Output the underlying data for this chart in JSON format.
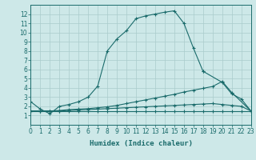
{
  "xlabel": "Humidex (Indice chaleur)",
  "background_color": "#cde8e8",
  "grid_color": "#aacccc",
  "line_color": "#1a6b6b",
  "xlim": [
    0,
    23
  ],
  "ylim": [
    0,
    13
  ],
  "xticks": [
    0,
    1,
    2,
    3,
    4,
    5,
    6,
    7,
    8,
    9,
    10,
    11,
    12,
    13,
    14,
    15,
    16,
    17,
    18,
    19,
    20,
    21,
    22,
    23
  ],
  "yticks": [
    1,
    2,
    3,
    4,
    5,
    6,
    7,
    8,
    9,
    10,
    11,
    12
  ],
  "curve1_x": [
    0,
    1,
    2,
    3,
    4,
    5,
    6,
    7,
    8,
    9,
    10,
    11,
    12,
    13,
    14,
    15,
    16,
    17,
    18,
    19,
    20,
    21,
    22,
    23
  ],
  "curve1_y": [
    2.5,
    1.7,
    1.2,
    2.0,
    2.2,
    2.5,
    3.0,
    4.2,
    8.0,
    9.3,
    10.2,
    11.5,
    11.8,
    12.0,
    12.2,
    12.35,
    11.0,
    8.3,
    5.8,
    null,
    null,
    null,
    null,
    null
  ],
  "curve2_x": [
    0,
    1,
    2,
    3,
    4,
    5,
    6,
    7,
    8,
    9,
    10,
    11,
    12,
    13,
    14,
    15,
    16,
    17,
    18,
    19,
    20,
    21,
    22,
    23
  ],
  "curve2_y": [
    null,
    null,
    null,
    null,
    null,
    null,
    null,
    null,
    null,
    null,
    null,
    null,
    null,
    null,
    null,
    null,
    null,
    null,
    5.8,
    null,
    4.6,
    3.35,
    2.8,
    1.5
  ],
  "curve3_x": [
    0,
    1,
    2,
    3,
    4,
    5,
    6,
    7,
    8,
    9,
    10,
    11,
    12,
    13,
    14,
    15,
    16,
    17,
    18,
    19,
    20,
    21,
    22,
    23
  ],
  "curve3_y": [
    1.5,
    1.5,
    1.5,
    1.55,
    1.65,
    1.7,
    1.75,
    1.85,
    1.95,
    2.1,
    2.3,
    2.5,
    2.7,
    2.9,
    3.1,
    3.3,
    3.55,
    3.75,
    3.95,
    4.15,
    4.7,
    3.5,
    null,
    1.5
  ],
  "curve4_x": [
    0,
    1,
    2,
    3,
    4,
    5,
    6,
    7,
    8,
    9,
    10,
    11,
    12,
    13,
    14,
    15,
    16,
    17,
    18,
    19,
    20,
    21,
    22,
    23
  ],
  "curve4_y": [
    1.5,
    1.5,
    1.5,
    1.5,
    1.55,
    1.6,
    1.65,
    1.7,
    1.75,
    1.8,
    1.85,
    1.9,
    1.95,
    2.0,
    2.05,
    2.1,
    2.15,
    2.2,
    2.25,
    2.3,
    2.2,
    2.1,
    2.0,
    1.5
  ],
  "curve5_x": [
    0,
    1,
    2,
    3,
    4,
    5,
    6,
    7,
    8,
    9,
    10,
    11,
    12,
    13,
    14,
    15,
    16,
    17,
    18,
    19,
    20,
    21,
    22,
    23
  ],
  "curve5_y": [
    1.5,
    1.5,
    1.5,
    1.5,
    1.5,
    1.5,
    1.5,
    1.5,
    1.5,
    1.5,
    1.5,
    1.5,
    1.5,
    1.5,
    1.5,
    1.5,
    1.5,
    1.5,
    1.5,
    1.5,
    1.5,
    1.5,
    1.5,
    1.5
  ]
}
